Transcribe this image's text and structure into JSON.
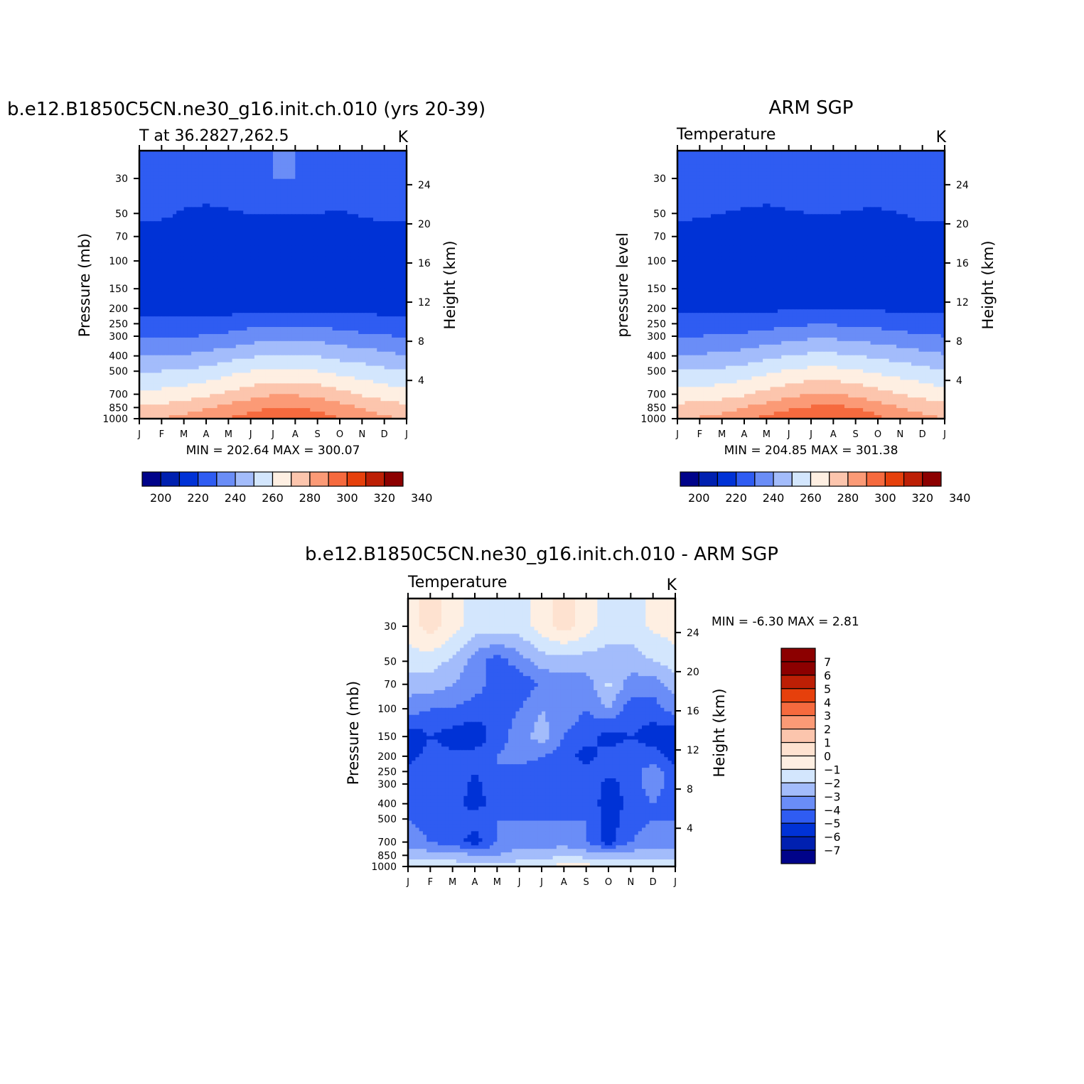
{
  "chart_data": [
    {
      "type": "heatmap",
      "title": "b.e12.B1850C5CN.ne30_g16.init.ch.010 (yrs 20-39)",
      "subtitle": "T at 36.2827,262.5",
      "units": "K",
      "ylabel": "Pressure (mb)",
      "y2label": "Height (km)",
      "x_ticks": [
        "J",
        "F",
        "M",
        "A",
        "M",
        "J",
        "J",
        "A",
        "S",
        "O",
        "N",
        "D",
        "J"
      ],
      "y_ticks": [
        30,
        50,
        70,
        100,
        150,
        200,
        250,
        300,
        400,
        500,
        700,
        850,
        1000
      ],
      "y2_ticks": [
        24,
        20,
        16,
        12,
        8,
        4
      ],
      "stats": "MIN =  202.64  MAX  =  300.07",
      "min": 202.64,
      "max": 300.07,
      "colorbar_labels": [
        200,
        220,
        240,
        260,
        280,
        300,
        320,
        340
      ],
      "colorbar_colors": [
        "#00038a",
        "#0020b0",
        "#0032d6",
        "#2f5cf2",
        "#6a8df7",
        "#a3bcfb",
        "#d3e6fd",
        "#feefe2",
        "#fcc5ad",
        "#fb9a76",
        "#f66a3e",
        "#e6400c",
        "#bd1f05",
        "#8c0000"
      ],
      "field": {
        "months": [
          0,
          1,
          2,
          3,
          4,
          5,
          6,
          7,
          8,
          9,
          10,
          11,
          12
        ],
        "levels": [
          30,
          50,
          70,
          100,
          150,
          200,
          250,
          300,
          400,
          500,
          700,
          850,
          1000
        ],
        "values": [
          [
            226,
            226,
            226,
            226,
            227,
            229,
            230,
            230,
            229,
            227,
            226,
            226,
            226
          ],
          [
            222,
            222,
            219,
            218,
            219,
            220,
            220,
            220,
            220,
            219,
            221,
            222,
            222
          ],
          [
            217,
            215,
            214,
            214,
            214,
            214,
            214,
            215,
            215,
            215,
            215,
            216,
            217
          ],
          [
            213,
            212,
            212,
            212,
            211,
            211,
            211,
            211,
            212,
            212,
            212,
            213,
            213
          ],
          [
            214,
            213,
            213,
            213,
            212,
            212,
            212,
            212,
            212,
            213,
            213,
            214,
            214
          ],
          [
            217,
            216,
            216,
            216,
            216,
            217,
            218,
            218,
            218,
            218,
            217,
            217,
            217
          ],
          [
            223,
            223,
            223,
            224,
            225,
            227,
            228,
            228,
            228,
            226,
            225,
            224,
            223
          ],
          [
            229,
            229,
            229,
            231,
            232,
            235,
            236,
            237,
            236,
            234,
            232,
            231,
            229
          ],
          [
            240,
            240,
            241,
            243,
            246,
            249,
            251,
            251,
            250,
            247,
            245,
            243,
            240
          ],
          [
            250,
            250,
            251,
            253,
            257,
            260,
            262,
            262,
            260,
            257,
            255,
            252,
            250
          ],
          [
            263,
            263,
            265,
            268,
            272,
            276,
            279,
            279,
            277,
            273,
            269,
            266,
            263
          ],
          [
            272,
            273,
            275,
            279,
            283,
            287,
            290,
            290,
            288,
            284,
            279,
            275,
            272
          ],
          [
            279,
            280,
            283,
            287,
            291,
            294,
            296,
            296,
            294,
            290,
            286,
            282,
            279
          ]
        ]
      }
    },
    {
      "type": "heatmap",
      "title": "ARM SGP",
      "subtitle": "Temperature",
      "units": "K",
      "ylabel": "pressure level",
      "y2label": "Height (km)",
      "x_ticks": [
        "J",
        "F",
        "M",
        "A",
        "M",
        "J",
        "J",
        "A",
        "S",
        "O",
        "N",
        "D",
        "J"
      ],
      "y_ticks": [
        30,
        50,
        70,
        100,
        150,
        200,
        250,
        300,
        400,
        500,
        700,
        850,
        1000
      ],
      "y2_ticks": [
        24,
        20,
        16,
        12,
        8,
        4
      ],
      "stats": "MIN =  204.85  MAX  =  301.38",
      "min": 204.85,
      "max": 301.38,
      "colorbar_labels": [
        200,
        220,
        240,
        260,
        280,
        300,
        320,
        340
      ],
      "colorbar_colors": [
        "#00038a",
        "#0020b0",
        "#0032d6",
        "#2f5cf2",
        "#6a8df7",
        "#a3bcfb",
        "#d3e6fd",
        "#feefe2",
        "#fcc5ad",
        "#fb9a76",
        "#f66a3e",
        "#e6400c",
        "#bd1f05",
        "#8c0000"
      ],
      "field": {
        "months": [
          0,
          1,
          2,
          3,
          4,
          5,
          6,
          7,
          8,
          9,
          10,
          11,
          12
        ],
        "levels": [
          30,
          50,
          70,
          100,
          150,
          200,
          250,
          300,
          400,
          500,
          700,
          850,
          1000
        ],
        "values": [
          [
            226,
            226,
            226,
            226,
            226,
            228,
            230,
            229,
            227,
            226,
            226,
            226,
            226
          ],
          [
            222,
            221,
            220,
            219,
            218,
            219,
            220,
            220,
            219,
            219,
            220,
            222,
            222
          ],
          [
            217,
            216,
            215,
            214,
            214,
            214,
            214,
            214,
            214,
            214,
            215,
            216,
            217
          ],
          [
            213,
            213,
            213,
            213,
            212,
            210,
            210,
            210,
            211,
            212,
            213,
            213,
            213
          ],
          [
            215,
            215,
            215,
            214,
            213,
            212,
            211,
            211,
            212,
            213,
            214,
            215,
            215
          ],
          [
            218,
            218,
            218,
            218,
            218,
            219,
            220,
            220,
            220,
            219,
            218,
            218,
            218
          ],
          [
            223,
            223,
            224,
            225,
            226,
            228,
            229,
            229,
            228,
            227,
            226,
            224,
            223
          ],
          [
            230,
            230,
            231,
            232,
            234,
            236,
            238,
            238,
            237,
            235,
            233,
            231,
            230
          ],
          [
            241,
            241,
            242,
            244,
            247,
            250,
            252,
            252,
            251,
            248,
            246,
            243,
            241
          ],
          [
            251,
            251,
            252,
            254,
            258,
            261,
            263,
            263,
            261,
            258,
            256,
            253,
            251
          ],
          [
            264,
            264,
            266,
            269,
            273,
            277,
            280,
            280,
            278,
            274,
            270,
            267,
            264
          ],
          [
            273,
            274,
            276,
            280,
            284,
            288,
            291,
            292,
            290,
            285,
            280,
            276,
            273
          ],
          [
            280,
            281,
            284,
            288,
            293,
            297,
            300,
            300,
            298,
            292,
            287,
            283,
            280
          ]
        ]
      }
    },
    {
      "type": "heatmap",
      "title": "b.e12.B1850C5CN.ne30_g16.init.ch.010 - ARM SGP",
      "subtitle": "Temperature",
      "units": "K",
      "ylabel": "Pressure (mb)",
      "y2label": "Height (km)",
      "x_ticks": [
        "J",
        "F",
        "M",
        "A",
        "M",
        "J",
        "J",
        "A",
        "S",
        "O",
        "N",
        "D",
        "J"
      ],
      "y_ticks": [
        30,
        50,
        70,
        100,
        150,
        200,
        250,
        300,
        400,
        500,
        700,
        850,
        1000
      ],
      "y2_ticks": [
        24,
        20,
        16,
        12,
        8,
        4
      ],
      "stats": "MIN =   -6.30  MAX  =     2.81",
      "min": -6.3,
      "max": 2.81,
      "colorbar_labels": [
        7,
        6,
        5,
        4,
        3,
        2,
        1,
        0,
        -1,
        -2,
        -3,
        -4,
        -5,
        -6,
        -7
      ],
      "colorbar_colors": [
        "#8c0000",
        "#bd1f05",
        "#e6400c",
        "#f66a3e",
        "#fb9a76",
        "#fcc5ad",
        "#fee2d0",
        "#feefe2",
        "#d3e6fd",
        "#a3bcfb",
        "#6a8df7",
        "#2f5cf2",
        "#0032d6",
        "#0020b0",
        "#00038a"
      ],
      "field": {
        "months": [
          0,
          1,
          2,
          3,
          4,
          5,
          6,
          7,
          8,
          9,
          10,
          11,
          12
        ],
        "levels": [
          30,
          50,
          70,
          100,
          150,
          200,
          250,
          300,
          400,
          500,
          700,
          850,
          1000
        ],
        "values": [
          [
            0.5,
            1.5,
            0.5,
            -0.5,
            -0.5,
            -0.5,
            0.5,
            1.5,
            0.5,
            -0.5,
            -0.5,
            0.2,
            0.5
          ],
          [
            -0.5,
            -0.5,
            -1.2,
            -2.5,
            -3.5,
            -2.5,
            -1.5,
            -1.5,
            -1.5,
            -1.5,
            -1.5,
            -1.0,
            -0.5
          ],
          [
            -1.5,
            -1.5,
            -2.0,
            -2.5,
            -3.5,
            -3.8,
            -2.8,
            -2.5,
            -2.5,
            -0.8,
            -2.5,
            -2.5,
            -1.5
          ],
          [
            -2.5,
            -3.0,
            -3.0,
            -3.5,
            -3.5,
            -3.0,
            -2.0,
            -2.5,
            -3.0,
            -2.0,
            -3.5,
            -3.5,
            -2.5
          ],
          [
            -4.8,
            -4.0,
            -4.5,
            -4.8,
            -3.5,
            -2.5,
            -1.5,
            -3.0,
            -3.5,
            -4.5,
            -4.0,
            -4.5,
            -4.8
          ],
          [
            -4.5,
            -3.5,
            -3.8,
            -3.5,
            -3.0,
            -2.5,
            -3.0,
            -3.5,
            -4.5,
            -3.5,
            -3.5,
            -3.5,
            -4.5
          ],
          [
            -3.5,
            -3.5,
            -3.0,
            -4.0,
            -3.0,
            -3.5,
            -3.5,
            -3.5,
            -3.5,
            -3.5,
            -3.5,
            -2.5,
            -3.5
          ],
          [
            -3.5,
            -3.0,
            -3.5,
            -4.2,
            -3.5,
            -3.5,
            -3.5,
            -3.5,
            -3.0,
            -4.5,
            -3.5,
            -2.5,
            -3.5
          ],
          [
            -3.5,
            -3.5,
            -3.5,
            -4.5,
            -3.5,
            -3.5,
            -3.5,
            -3.5,
            -3.0,
            -4.8,
            -3.5,
            -3.0,
            -3.5
          ],
          [
            -3.0,
            -3.5,
            -3.5,
            -3.5,
            -3.0,
            -3.0,
            -3.0,
            -3.0,
            -3.0,
            -4.5,
            -3.5,
            -3.0,
            -3.0
          ],
          [
            -2.5,
            -3.0,
            -3.5,
            -4.5,
            -3.0,
            -2.5,
            -2.5,
            -2.5,
            -3.0,
            -4.5,
            -3.0,
            -2.5,
            -2.5
          ],
          [
            -1.5,
            -1.5,
            -1.5,
            -2.0,
            -2.0,
            -1.5,
            -1.5,
            -1.0,
            -1.5,
            -1.5,
            -1.5,
            -1.5,
            -1.5
          ],
          [
            -0.5,
            0.2,
            -0.5,
            -0.5,
            -0.5,
            -0.5,
            -0.5,
            0.5,
            0.5,
            -0.5,
            0.2,
            -0.5,
            -0.5
          ]
        ]
      }
    }
  ]
}
